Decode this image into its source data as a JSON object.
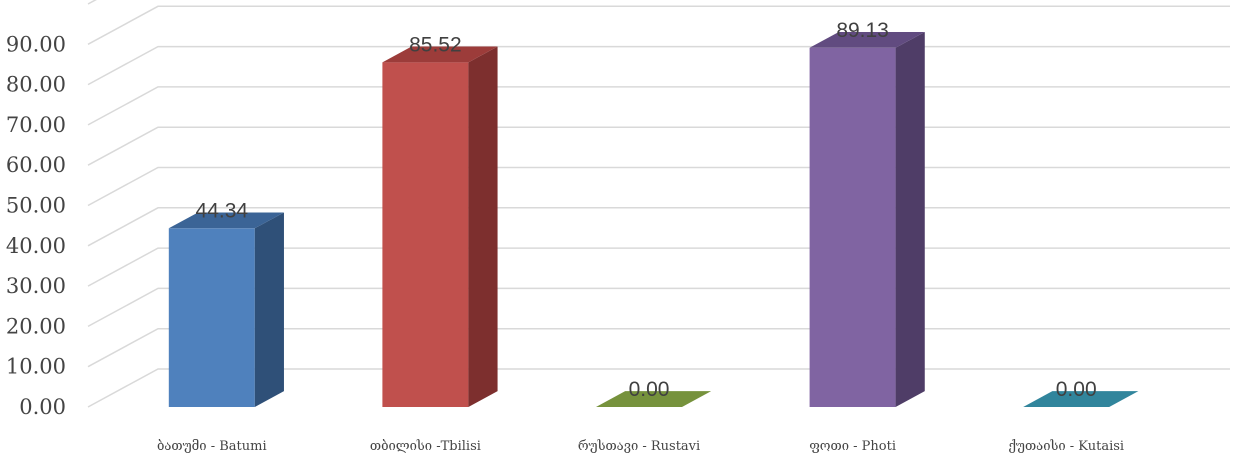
{
  "chart_data": {
    "type": "bar",
    "style": "3d-column",
    "categories": [
      "ბათუმი - Batumi",
      "თბილისი -Tbilisi",
      "რუსთავი - Rustavi",
      "ფოთი - Photi",
      "ქუთაისი - Kutaisi"
    ],
    "values": [
      44.34,
      85.52,
      0.0,
      89.13,
      0.0
    ],
    "data_labels": [
      "44.34",
      "85.52",
      "0.00",
      "89.13",
      "0.00"
    ],
    "y_ticks": [
      "0.00",
      "10.00",
      "20.00",
      "30.00",
      "40.00",
      "50.00",
      "60.00",
      "70.00",
      "80.00",
      "90.00"
    ],
    "ylim": [
      0,
      100
    ],
    "grid": true,
    "legend": "none",
    "title": "",
    "xlabel": "",
    "ylabel": "",
    "colors": [
      {
        "front": "#4f81bd",
        "side": "#2f5078",
        "top": "#3b6496"
      },
      {
        "front": "#c0504d",
        "side": "#7d2f2e",
        "top": "#9c3c3a"
      },
      {
        "front": "#9bbb59",
        "side": "#5e7a30",
        "top": "#76923c"
      },
      {
        "front": "#8064a2",
        "side": "#4f3d67",
        "top": "#614b80"
      },
      {
        "front": "#4bacc6",
        "side": "#2a6f81",
        "top": "#31859c"
      }
    ],
    "grid_color": "#d9d9d9"
  }
}
